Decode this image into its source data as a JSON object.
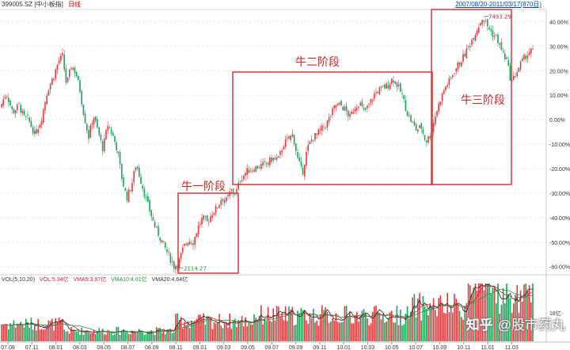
{
  "header": {
    "symbol": "399005.SZ",
    "name": "[中小板指]",
    "period": "日线",
    "date_range": "2007/08/20-2011/03/17(870日)"
  },
  "volume_legend": {
    "label": "VOL(5,10,20)",
    "vol": "VOL:5.34亿",
    "vma5": "VMA5:3.97亿",
    "vma10": "VMA10:4.01亿",
    "vma20": "VMA20:4.64亿",
    "axis_label": "18亿"
  },
  "annotations": {
    "stage1": "牛一阶段",
    "stage2": "牛二阶段",
    "stage3": "牛三阶段",
    "low_price": "2114.27",
    "high_price": "7493.29"
  },
  "watermark": {
    "logo": "知乎",
    "text": "@股市药丸"
  },
  "colors": {
    "up": "#e8383d",
    "down": "#19a35a",
    "box": "#d23a3a",
    "grid": "#e8e8e8"
  },
  "chart_data": {
    "type": "candlestick",
    "y_axis_unit": "%",
    "y_ticks": [
      "40.00%",
      "30.00%",
      "20.00%",
      "10.00%",
      "0.00%",
      "-10.00%",
      "-20.00%",
      "-30.00%",
      "-40.00%",
      "-50.00%",
      "-60.00%"
    ],
    "y_range": [
      -63,
      45
    ],
    "x_ticks": [
      "07.08",
      "07.11",
      "08.01",
      "08.03",
      "08.05",
      "08.07",
      "08.09",
      "08.11",
      "09.01",
      "09.03",
      "09.05",
      "09.07",
      "09.09",
      "09.11",
      "10.01",
      "10.03",
      "10.05",
      "10.07",
      "10.09",
      "10.11",
      "11.01",
      "11.03"
    ],
    "close_series_pct": [
      [
        0,
        5
      ],
      [
        8,
        11
      ],
      [
        16,
        3
      ],
      [
        24,
        6
      ],
      [
        30,
        1
      ],
      [
        36,
        0
      ],
      [
        44,
        -6
      ],
      [
        52,
        0
      ],
      [
        60,
        12
      ],
      [
        68,
        18
      ],
      [
        74,
        24
      ],
      [
        79,
        26
      ],
      [
        84,
        14
      ],
      [
        90,
        22
      ],
      [
        96,
        19
      ],
      [
        101,
        12
      ],
      [
        106,
        2
      ],
      [
        112,
        -7
      ],
      [
        118,
        2
      ],
      [
        124,
        -5
      ],
      [
        130,
        -12
      ],
      [
        136,
        -2
      ],
      [
        142,
        -6
      ],
      [
        148,
        -12
      ],
      [
        154,
        -24
      ],
      [
        160,
        -32
      ],
      [
        166,
        -27
      ],
      [
        172,
        -18
      ],
      [
        178,
        -25
      ],
      [
        184,
        -32
      ],
      [
        190,
        -38
      ],
      [
        196,
        -44
      ],
      [
        202,
        -48
      ],
      [
        208,
        -52
      ],
      [
        214,
        -56
      ],
      [
        220,
        -60
      ],
      [
        226,
        -58
      ],
      [
        232,
        -52
      ],
      [
        238,
        -49
      ],
      [
        244,
        -50
      ],
      [
        250,
        -44
      ],
      [
        256,
        -40
      ],
      [
        262,
        -42
      ],
      [
        268,
        -38
      ],
      [
        274,
        -36
      ],
      [
        280,
        -32
      ],
      [
        286,
        -33
      ],
      [
        292,
        -29
      ],
      [
        298,
        -30
      ],
      [
        304,
        -24
      ],
      [
        312,
        -21
      ],
      [
        320,
        -20
      ],
      [
        328,
        -19
      ],
      [
        336,
        -18
      ],
      [
        344,
        -16
      ],
      [
        352,
        -16
      ],
      [
        358,
        -10
      ],
      [
        364,
        -8
      ],
      [
        370,
        -6
      ],
      [
        376,
        -16
      ],
      [
        382,
        -22
      ],
      [
        388,
        -12
      ],
      [
        394,
        -8
      ],
      [
        400,
        -6
      ],
      [
        406,
        -4
      ],
      [
        412,
        -2
      ],
      [
        418,
        2
      ],
      [
        424,
        6
      ],
      [
        430,
        6
      ],
      [
        436,
        4
      ],
      [
        442,
        1
      ],
      [
        448,
        5
      ],
      [
        454,
        7
      ],
      [
        460,
        3
      ],
      [
        466,
        6
      ],
      [
        472,
        10
      ],
      [
        478,
        12
      ],
      [
        484,
        13
      ],
      [
        490,
        14
      ],
      [
        496,
        17
      ],
      [
        502,
        14
      ],
      [
        508,
        10
      ],
      [
        514,
        3
      ],
      [
        520,
        -1
      ],
      [
        526,
        -4
      ],
      [
        532,
        -3
      ],
      [
        538,
        -9
      ],
      [
        544,
        -6
      ],
      [
        550,
        2
      ],
      [
        556,
        8
      ],
      [
        562,
        13
      ],
      [
        568,
        16
      ],
      [
        574,
        20
      ],
      [
        580,
        23
      ],
      [
        586,
        26
      ],
      [
        592,
        30
      ],
      [
        598,
        34
      ],
      [
        604,
        38
      ],
      [
        610,
        42
      ],
      [
        616,
        38
      ],
      [
        622,
        35
      ],
      [
        628,
        33
      ],
      [
        634,
        28
      ],
      [
        640,
        24
      ],
      [
        646,
        15
      ],
      [
        652,
        19
      ],
      [
        658,
        23
      ],
      [
        664,
        26
      ],
      [
        670,
        28
      ],
      [
        674,
        28
      ]
    ],
    "low_point": {
      "label": "2114.27",
      "x_index_pct": -60
    },
    "high_point": {
      "label": "7493.29",
      "x_index_pct": 42
    }
  }
}
